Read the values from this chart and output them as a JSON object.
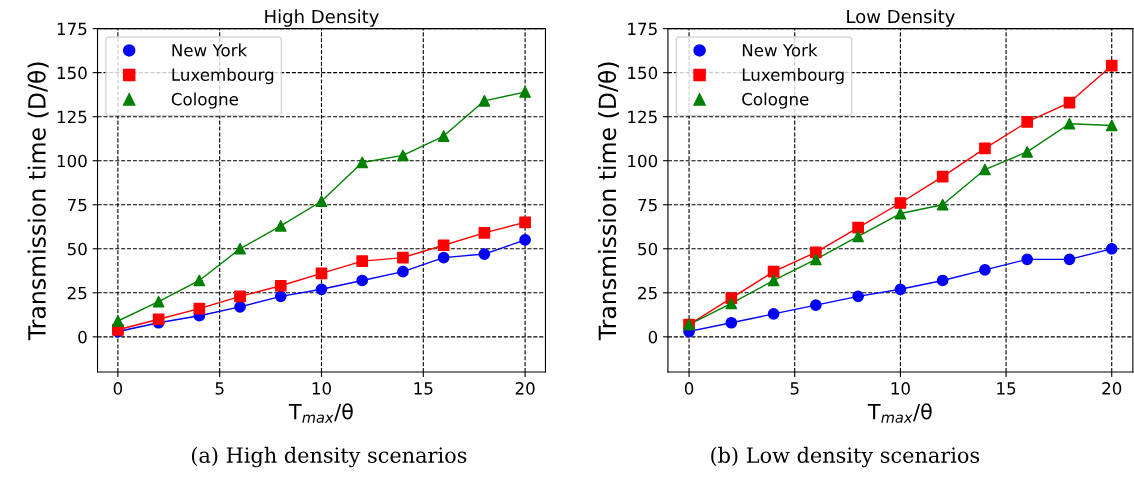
{
  "chart_data": [
    {
      "type": "line",
      "title": "High Density",
      "xlabel": "T$_{max}$/θ",
      "ylabel": "Transmission time (D/θ)",
      "x": [
        0,
        2,
        4,
        6,
        8,
        10,
        12,
        14,
        16,
        18,
        20
      ],
      "xlim": [
        -1,
        21
      ],
      "xticks": [
        0,
        5,
        10,
        15,
        20
      ],
      "ylim": [
        -20,
        175
      ],
      "yticks": [
        0,
        25,
        50,
        75,
        100,
        125,
        150,
        175
      ],
      "grid": true,
      "legend": "top left",
      "annotations": [
        "(a) High density scenarios"
      ],
      "series": [
        {
          "name": "New York",
          "color": "#0000ff",
          "marker": "circle",
          "values": [
            3,
            8,
            12,
            17,
            23,
            27,
            32,
            37,
            45,
            47,
            55
          ]
        },
        {
          "name": "Luxembourg",
          "color": "#ff0000",
          "marker": "square",
          "values": [
            4,
            10,
            16,
            23,
            29,
            36,
            43,
            45,
            52,
            59,
            65
          ]
        },
        {
          "name": "Cologne",
          "color": "#008000",
          "marker": "triangle",
          "values": [
            9,
            20,
            32,
            50,
            63,
            77,
            99,
            103,
            114,
            134,
            139
          ]
        }
      ]
    },
    {
      "type": "line",
      "title": "Low Density",
      "xlabel": "T$_{max}$/θ",
      "ylabel": "Transmission time (D/θ)",
      "x": [
        0,
        2,
        4,
        6,
        8,
        10,
        12,
        14,
        16,
        18,
        20
      ],
      "xlim": [
        -1,
        21
      ],
      "xticks": [
        0,
        5,
        10,
        15,
        20
      ],
      "ylim": [
        -20,
        175
      ],
      "yticks": [
        0,
        25,
        50,
        75,
        100,
        125,
        150,
        175
      ],
      "grid": true,
      "legend": "top left",
      "annotations": [
        "(b) Low density scenarios"
      ],
      "series": [
        {
          "name": "New York",
          "color": "#0000ff",
          "marker": "circle",
          "values": [
            3,
            8,
            13,
            18,
            23,
            27,
            32,
            38,
            44,
            44,
            50
          ]
        },
        {
          "name": "Luxembourg",
          "color": "#ff0000",
          "marker": "square",
          "values": [
            7,
            22,
            37,
            48,
            62,
            76,
            91,
            107,
            122,
            133,
            154
          ]
        },
        {
          "name": "Cologne",
          "color": "#008000",
          "marker": "triangle",
          "values": [
            7,
            19,
            32,
            44,
            57,
            70,
            75,
            95,
            105,
            121,
            120
          ]
        }
      ]
    }
  ]
}
